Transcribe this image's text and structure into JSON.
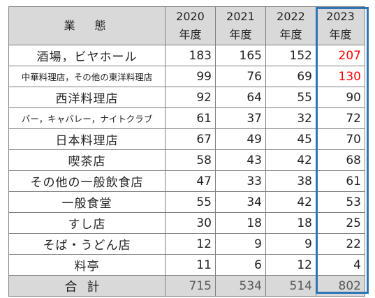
{
  "table": {
    "header": {
      "category": "業　態",
      "years": [
        {
          "year": "2020",
          "unit": "年度"
        },
        {
          "year": "2021",
          "unit": "年度"
        },
        {
          "year": "2022",
          "unit": "年度"
        },
        {
          "year": "2023",
          "unit": "年度"
        }
      ]
    },
    "rows": [
      {
        "name": "酒場，ビヤホール",
        "v2020": "183",
        "v2021": "165",
        "v2022": "152",
        "v2023": "207"
      },
      {
        "name": "中華料理店，その他の東洋料理店",
        "v2020": "99",
        "v2021": "76",
        "v2022": "69",
        "v2023": "130"
      },
      {
        "name": "西洋料理店",
        "v2020": "92",
        "v2021": "64",
        "v2022": "55",
        "v2023": "90"
      },
      {
        "name": "バー，キャバレー，ナイトクラブ",
        "v2020": "61",
        "v2021": "37",
        "v2022": "32",
        "v2023": "72"
      },
      {
        "name": "日本料理店",
        "v2020": "67",
        "v2021": "49",
        "v2022": "45",
        "v2023": "70"
      },
      {
        "name": "喫茶店",
        "v2020": "58",
        "v2021": "43",
        "v2022": "42",
        "v2023": "68"
      },
      {
        "name": "その他の一般飲食店",
        "v2020": "47",
        "v2021": "33",
        "v2022": "38",
        "v2023": "61"
      },
      {
        "name": "一般食堂",
        "v2020": "55",
        "v2021": "34",
        "v2022": "42",
        "v2023": "53"
      },
      {
        "name": "すし店",
        "v2020": "30",
        "v2021": "18",
        "v2022": "18",
        "v2023": "25"
      },
      {
        "name": "そば・うどん店",
        "v2020": "12",
        "v2021": "9",
        "v2022": "9",
        "v2023": "22"
      },
      {
        "name": "料亭",
        "v2020": "11",
        "v2021": "6",
        "v2022": "12",
        "v2023": "4"
      }
    ],
    "total": {
      "name": "合計",
      "v2020": "715",
      "v2021": "534",
      "v2022": "514",
      "v2023": "802"
    }
  },
  "colors": {
    "header_bg": "#d9d9d9",
    "grid": "#7f7f7f",
    "highlight_text": "#ff0000",
    "highlight_frame": "#2e75b6"
  }
}
